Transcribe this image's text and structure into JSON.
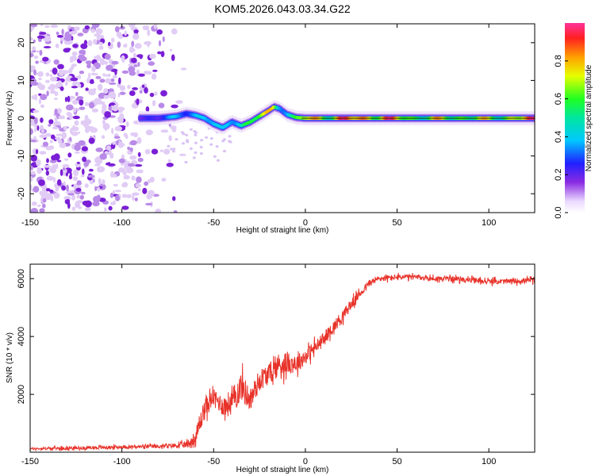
{
  "title": "KOM5.2026.043.03.34.G22",
  "chart_data": [
    {
      "type": "heatmap",
      "name": "spectrogram",
      "xlabel": "Height of straight line (km)",
      "ylabel": "Frequency (Hz)",
      "xlim": [
        -150,
        125
      ],
      "ylim": [
        -25,
        25
      ],
      "xticks": [
        -150,
        -100,
        -50,
        0,
        50,
        100
      ],
      "xtick_labels": [
        "-150",
        "-100",
        "-50",
        "0",
        "50",
        "100"
      ],
      "yticks": [
        -20,
        -10,
        0,
        10,
        20
      ],
      "ytick_labels": [
        "-20",
        "-10",
        "0",
        "10",
        "20"
      ],
      "ridge": {
        "x": [
          -90,
          -80,
          -70,
          -65,
          -60,
          -55,
          -50,
          -45,
          -40,
          -35,
          -30,
          -25,
          -20,
          -17,
          -14,
          -10,
          -5,
          0,
          10,
          20,
          40,
          60,
          80,
          100,
          125
        ],
        "freq": [
          0,
          0,
          0.5,
          1.2,
          0.8,
          0,
          -1.5,
          -2.5,
          -1.0,
          -2.0,
          -1.0,
          0.5,
          2.0,
          3.0,
          2.5,
          1.0,
          0.2,
          0,
          0,
          0,
          0,
          0,
          0,
          0,
          0
        ],
        "amplitude": [
          0.25,
          0.3,
          0.35,
          0.4,
          0.45,
          0.5,
          0.4,
          0.35,
          0.55,
          0.6,
          0.65,
          0.7,
          0.75,
          0.85,
          0.6,
          0.5,
          0.6,
          0.8,
          0.85,
          0.9,
          0.95,
          0.7,
          0.75,
          0.7,
          0.9
        ]
      },
      "noise_region": [
        -150,
        -75
      ],
      "colorbar": {
        "label": "Normalized spectral amplitude",
        "range": [
          0,
          1
        ],
        "ticks": [
          0,
          0.2,
          0.4,
          0.6,
          0.8
        ],
        "tick_labels": [
          "0.0",
          "0.2",
          "0.4",
          "0.6",
          "0.8"
        ]
      }
    },
    {
      "type": "line",
      "name": "snr",
      "xlabel": "Height of straight line (km)",
      "ylabel": "SNR (10 * v/v)",
      "xlim": [
        -150,
        125
      ],
      "ylim": [
        0,
        6500
      ],
      "xticks": [
        -150,
        -100,
        -50,
        0,
        50,
        100
      ],
      "xtick_labels": [
        "-150",
        "-100",
        "-50",
        "0",
        "50",
        "100"
      ],
      "yticks": [
        2000,
        4000,
        6000
      ],
      "ytick_labels": [
        "2000",
        "4000",
        "6000"
      ],
      "color": "#e8332a",
      "envelope": {
        "x": [
          -150,
          -120,
          -100,
          -80,
          -65,
          -60,
          -55,
          -50,
          -45,
          -40,
          -35,
          -30,
          -25,
          -20,
          -15,
          -10,
          -5,
          0,
          5,
          10,
          15,
          20,
          25,
          30,
          35,
          40,
          50,
          60,
          70,
          80,
          90,
          100,
          110,
          125
        ],
        "mean": [
          120,
          150,
          180,
          200,
          250,
          450,
          1500,
          1900,
          1600,
          1700,
          2300,
          1800,
          2500,
          2700,
          3000,
          3100,
          3050,
          3300,
          3600,
          3900,
          4300,
          4700,
          5100,
          5500,
          5850,
          6000,
          6050,
          6050,
          6000,
          6000,
          5950,
          5900,
          5900,
          5950
        ],
        "spread": [
          60,
          80,
          80,
          90,
          150,
          450,
          500,
          400,
          500,
          700,
          700,
          600,
          550,
          500,
          600,
          550,
          450,
          400,
          350,
          350,
          300,
          300,
          250,
          200,
          180,
          150,
          130,
          130,
          130,
          130,
          130,
          130,
          130,
          130
        ]
      }
    }
  ]
}
